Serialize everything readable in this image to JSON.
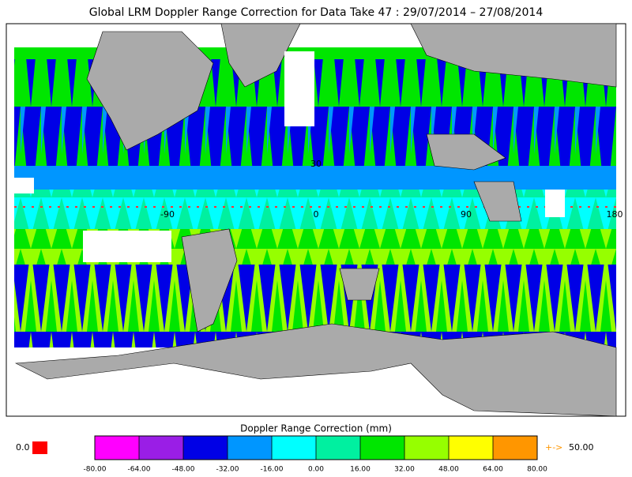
{
  "title": "Global LRM Doppler Range Correction for Data Take 47 : 29/07/2014 – 27/08/2014",
  "map": {
    "labels": [
      "30",
      "-90",
      "0",
      "90",
      "180"
    ]
  },
  "colorbar": {
    "title": "Doppler Range Correction (mm)",
    "colors": [
      "#ff00ff",
      "#9a1ee6",
      "#0000e6",
      "#0096ff",
      "#00ffff",
      "#00f0a0",
      "#00e600",
      "#96ff00",
      "#ffff00",
      "#ff9600"
    ],
    "ticks": [
      {
        "value": -80,
        "label": "-80.00"
      },
      {
        "value": -64,
        "label": "-64.00"
      },
      {
        "value": -48,
        "label": "-48.00"
      },
      {
        "value": -32,
        "label": "-32.00"
      },
      {
        "value": -16,
        "label": "-16.00"
      },
      {
        "value": 0,
        "label": "0.00"
      },
      {
        "value": 16,
        "label": "16.00"
      },
      {
        "value": 32,
        "label": "32.00"
      },
      {
        "value": 48,
        "label": "48.00"
      },
      {
        "value": 64,
        "label": "64.00"
      },
      {
        "value": 80,
        "label": "80.00"
      }
    ]
  },
  "missing": {
    "label": "0.0",
    "color": "#ff0000"
  },
  "overflow": {
    "arrow": "+->",
    "label": "50.00"
  }
}
